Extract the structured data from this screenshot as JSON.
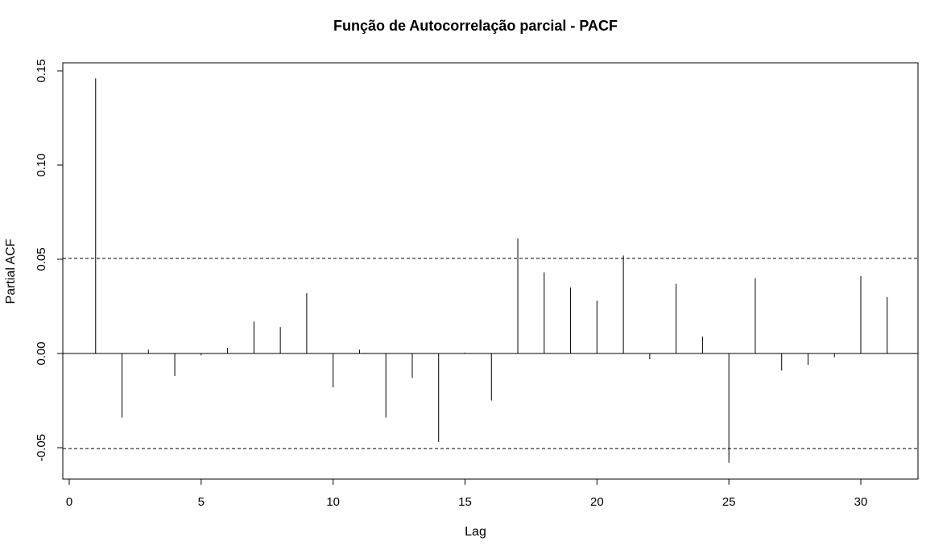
{
  "chart_data": {
    "type": "bar",
    "title": "Função de Autocorrelação parcial - PACF",
    "xlabel": "Lag",
    "ylabel": "Partial ACF",
    "xlim": [
      0,
      32
    ],
    "ylim": [
      -0.061,
      0.157
    ],
    "xticks": [
      0,
      5,
      10,
      15,
      20,
      25,
      30
    ],
    "xtick_labels": [
      "0",
      "5",
      "10",
      "15",
      "20",
      "25",
      "30"
    ],
    "yticks": [
      -0.05,
      0,
      0.05,
      0.1,
      0.15
    ],
    "ytick_labels": [
      "-0.05",
      "0.00",
      "0.05",
      "0.10",
      "0.15"
    ],
    "confidence_bound": 0.0505,
    "grid": false,
    "lags": [
      1,
      2,
      3,
      4,
      5,
      6,
      7,
      8,
      9,
      10,
      11,
      12,
      13,
      14,
      15,
      16,
      17,
      18,
      19,
      20,
      21,
      22,
      23,
      24,
      25,
      26,
      27,
      28,
      29,
      30,
      31
    ],
    "values": [
      0.146,
      -0.034,
      0.002,
      -0.012,
      -0.001,
      0.003,
      0.017,
      0.014,
      0.032,
      -0.018,
      0.002,
      -0.034,
      -0.013,
      -0.047,
      0.0005,
      -0.025,
      0.061,
      0.043,
      0.035,
      0.028,
      0.052,
      -0.003,
      0.037,
      0.009,
      -0.058,
      0.04,
      -0.009,
      -0.006,
      -0.002,
      0.041,
      0.03
    ],
    "colors": {
      "line": "#000000",
      "bound": "#000000",
      "background": "#ffffff"
    }
  }
}
